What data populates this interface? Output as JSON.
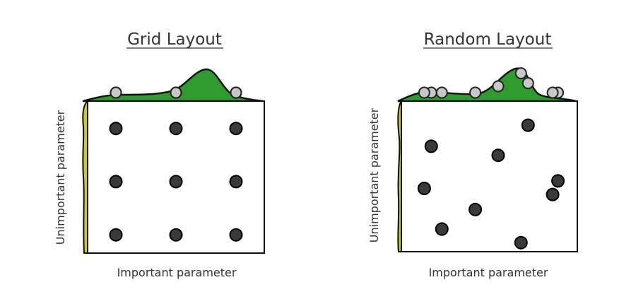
{
  "panels": [
    {
      "title": "Grid Layout",
      "xlabel": "Important parameter",
      "ylabel": "Unimportant parameter",
      "points": [
        [
          0.16,
          0.82
        ],
        [
          0.5,
          0.82
        ],
        [
          0.84,
          0.82
        ],
        [
          0.16,
          0.47
        ],
        [
          0.5,
          0.47
        ],
        [
          0.84,
          0.47
        ],
        [
          0.16,
          0.12
        ],
        [
          0.5,
          0.12
        ],
        [
          0.84,
          0.12
        ]
      ]
    },
    {
      "title": "Random Layout",
      "xlabel": "Important parameter",
      "ylabel": "Unimportant parameter",
      "points": [
        [
          0.72,
          0.84
        ],
        [
          0.17,
          0.7
        ],
        [
          0.55,
          0.64
        ],
        [
          0.89,
          0.47
        ],
        [
          0.13,
          0.42
        ],
        [
          0.86,
          0.38
        ],
        [
          0.42,
          0.28
        ],
        [
          0.23,
          0.15
        ],
        [
          0.68,
          0.06
        ]
      ]
    }
  ],
  "colors": {
    "marginal_fill": "#2f9a2f",
    "side_fill": "#c8c83a",
    "point_fill": "#3a3a3a",
    "proj_fill": "#c8c8c8"
  }
}
